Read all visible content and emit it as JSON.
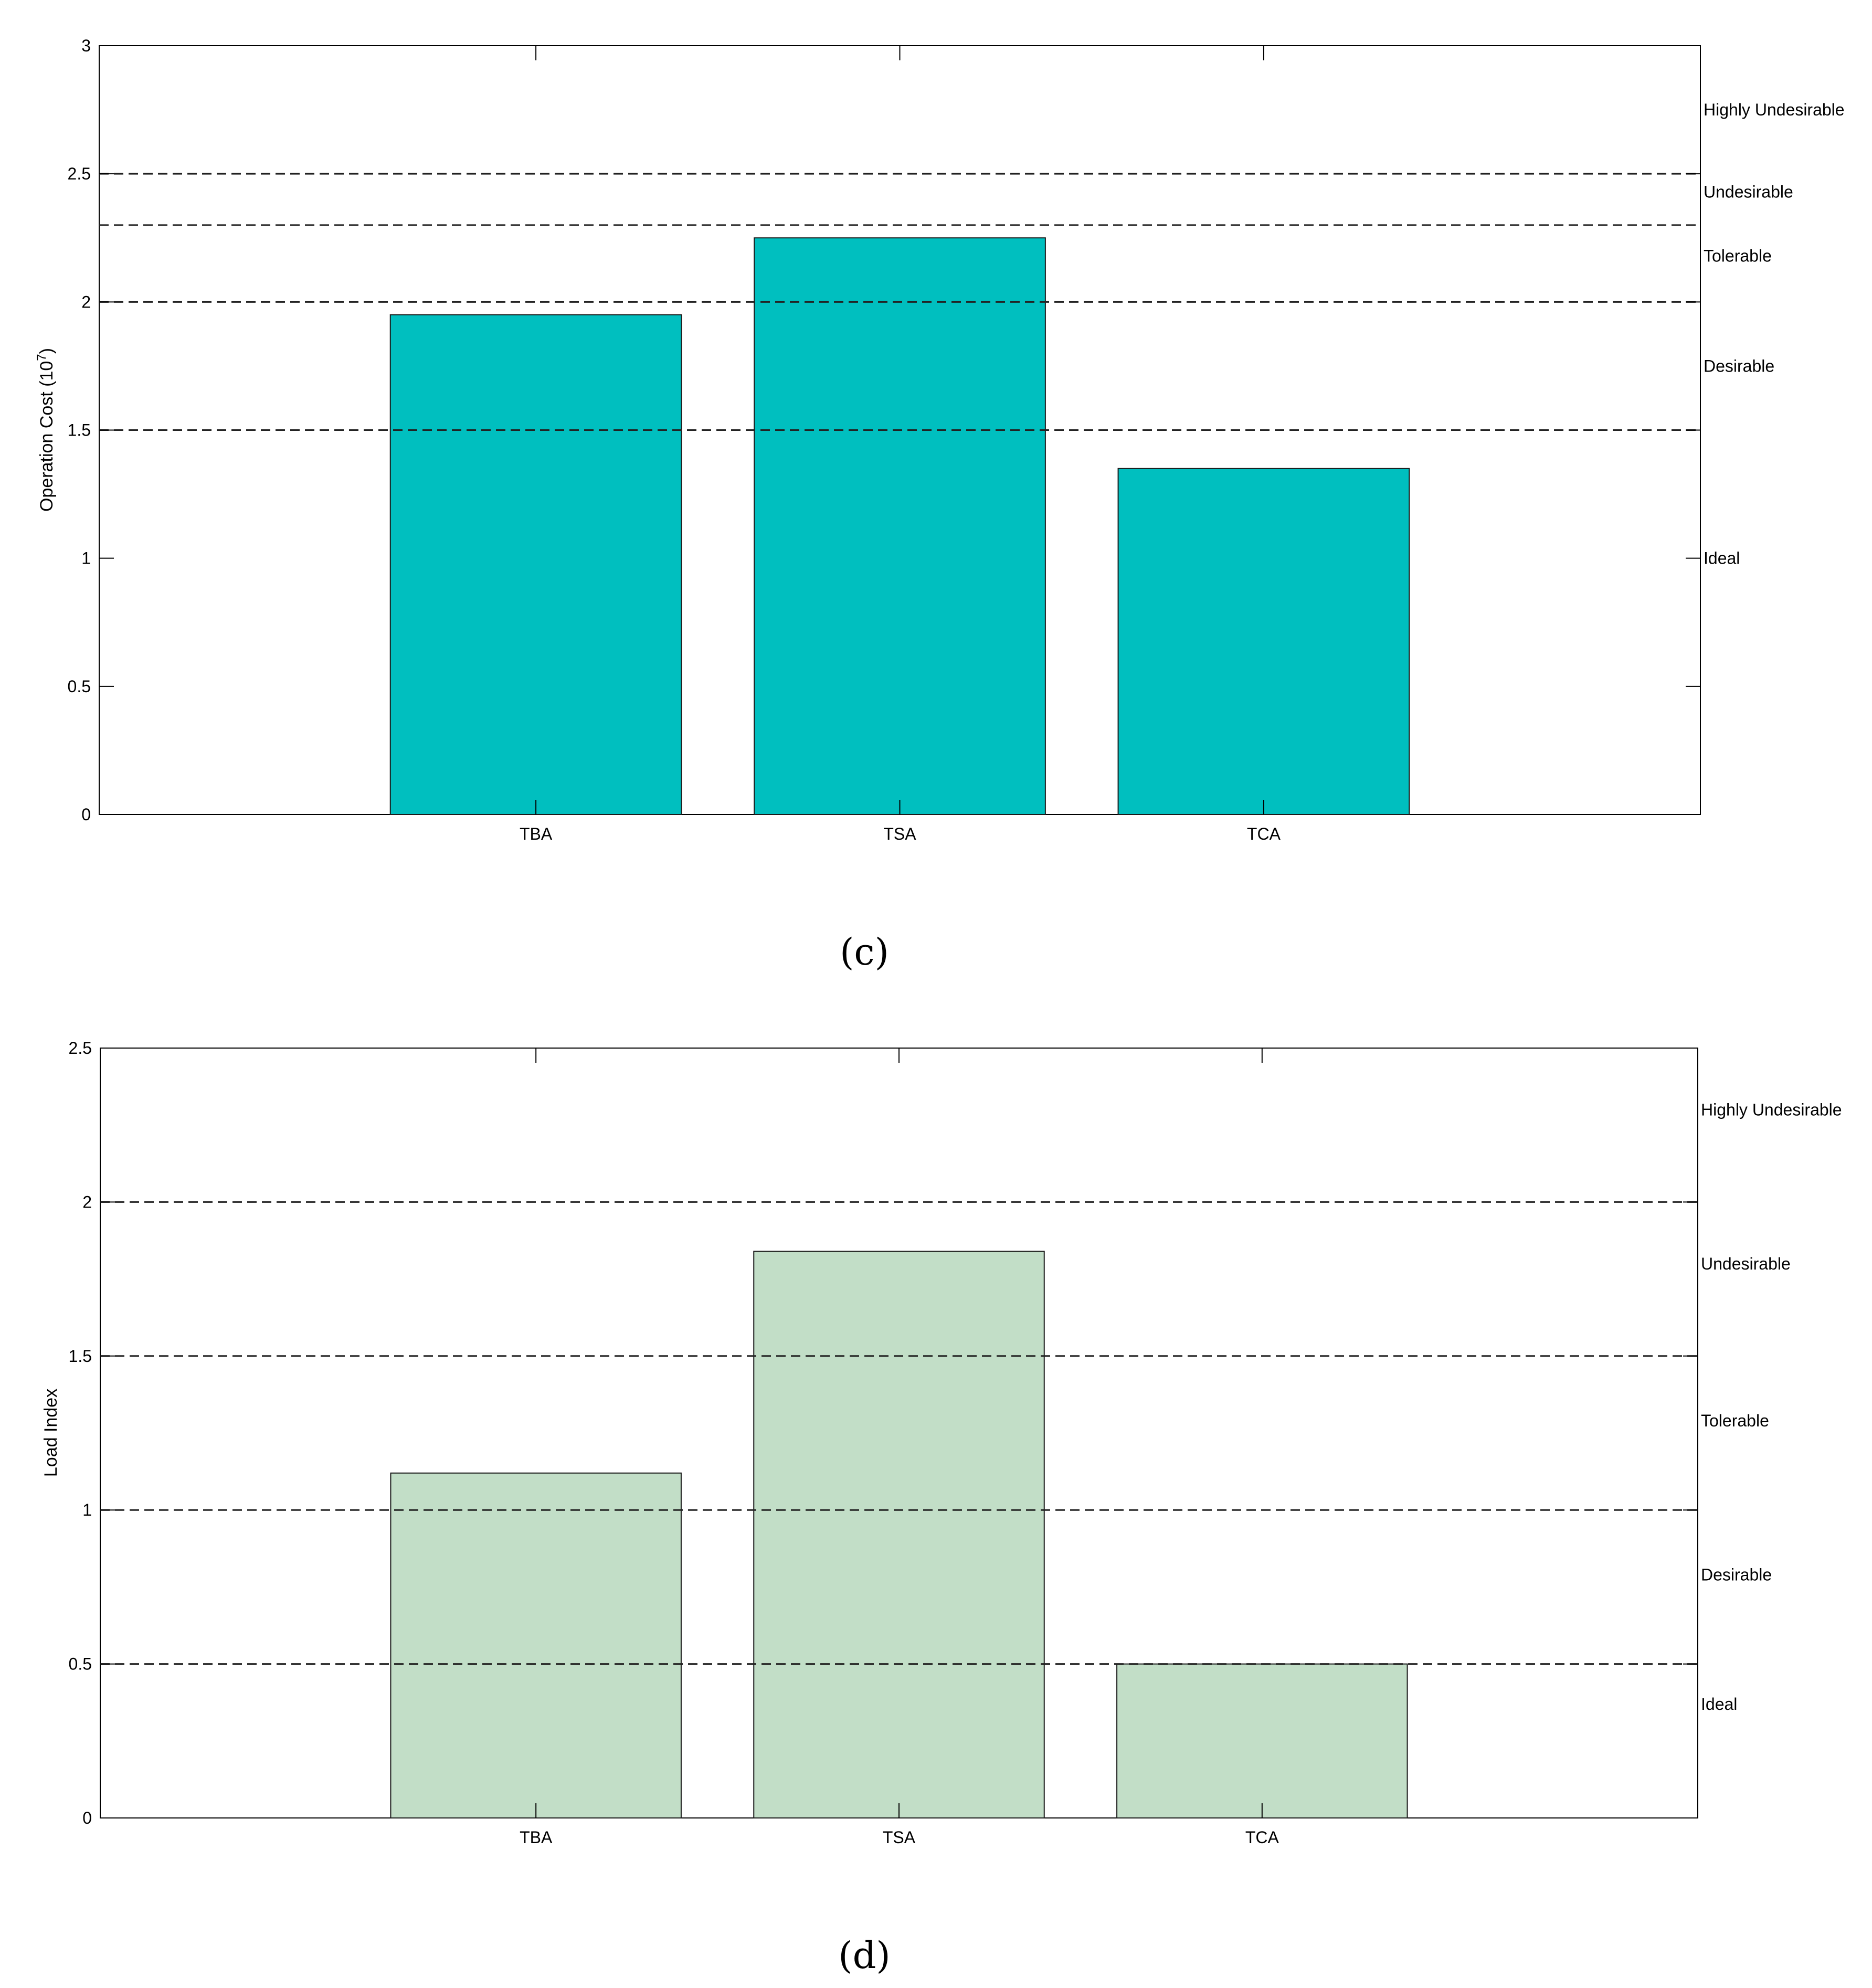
{
  "chart_data": [
    {
      "type": "bar",
      "panel_label": "(c)",
      "categories": [
        "TBA",
        "TSA",
        "TCA"
      ],
      "values": [
        1.95,
        2.25,
        1.35
      ],
      "ylabel": "Operation Cost (10",
      "ylabel_sup": "7",
      "ylabel_close": ")",
      "ylim": [
        0,
        3
      ],
      "yticks": [
        "0",
        "0.5",
        "1",
        "1.5",
        "2",
        "2.5",
        "3"
      ],
      "bar_color": "#00BFBF",
      "thresholds": [
        1.5,
        2.0,
        2.3,
        2.5
      ],
      "bands": [
        {
          "label": "Ideal",
          "value": 1.0
        },
        {
          "label": "Desirable",
          "value": 1.75
        },
        {
          "label": "Tolerable",
          "value": 2.18
        },
        {
          "label": "Undesirable",
          "value": 2.43
        },
        {
          "label": "Highly Undesirable",
          "value": 2.75
        }
      ],
      "grid": false
    },
    {
      "type": "bar",
      "panel_label": "(d)",
      "categories": [
        "TBA",
        "TSA",
        "TCA"
      ],
      "values": [
        1.12,
        1.84,
        0.5
      ],
      "ylabel": "Load Index",
      "ylim": [
        0,
        2.5
      ],
      "yticks": [
        "0",
        "0.5",
        "1",
        "1.5",
        "2",
        "2.5"
      ],
      "bar_color": "#C2DEC7",
      "thresholds": [
        0.5,
        1.0,
        1.5,
        2.0
      ],
      "bands": [
        {
          "label": "Ideal",
          "value": 0.37
        },
        {
          "label": "Desirable",
          "value": 0.79
        },
        {
          "label": "Tolerable",
          "value": 1.29
        },
        {
          "label": "Undesirable",
          "value": 1.8
        },
        {
          "label": "Highly Undesirable",
          "value": 2.3
        }
      ],
      "grid": false
    }
  ]
}
